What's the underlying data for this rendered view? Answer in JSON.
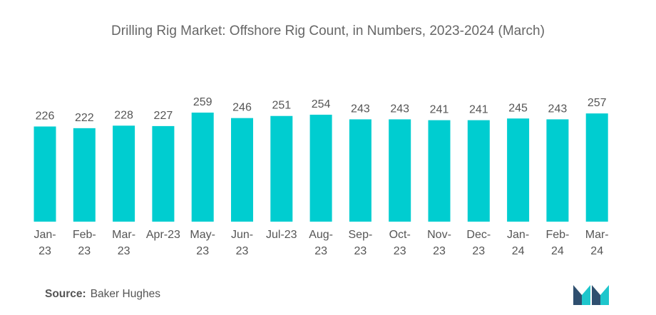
{
  "chart_data": {
    "type": "bar",
    "title": "Drilling Rig Market: Offshore Rig Count, in Numbers, 2023-2024 (March)",
    "categories": [
      [
        "Jan-",
        "23"
      ],
      [
        "Feb-",
        "23"
      ],
      [
        "Mar-",
        "23"
      ],
      [
        "Apr-23"
      ],
      [
        "May-",
        "23"
      ],
      [
        "Jun-",
        "23"
      ],
      [
        "Jul-23"
      ],
      [
        "Aug-",
        "23"
      ],
      [
        "Sep-",
        "23"
      ],
      [
        "Oct-",
        "23"
      ],
      [
        "Nov-",
        "23"
      ],
      [
        "Dec-",
        "23"
      ],
      [
        "Jan-",
        "24"
      ],
      [
        "Feb-",
        "24"
      ],
      [
        "Mar-",
        "24"
      ]
    ],
    "values": [
      226,
      222,
      228,
      227,
      259,
      246,
      251,
      254,
      243,
      243,
      241,
      241,
      245,
      243,
      257
    ],
    "ylim": [
      0,
      259
    ],
    "bar_color": "#00cdd0",
    "grid": false,
    "legend": "none"
  },
  "source": {
    "label": "Source:",
    "text": "Baker Hughes"
  },
  "logo": {
    "icon": "mordor-intelligence-logo",
    "colors": [
      "#2f4f6f",
      "#1ec6cc"
    ]
  }
}
